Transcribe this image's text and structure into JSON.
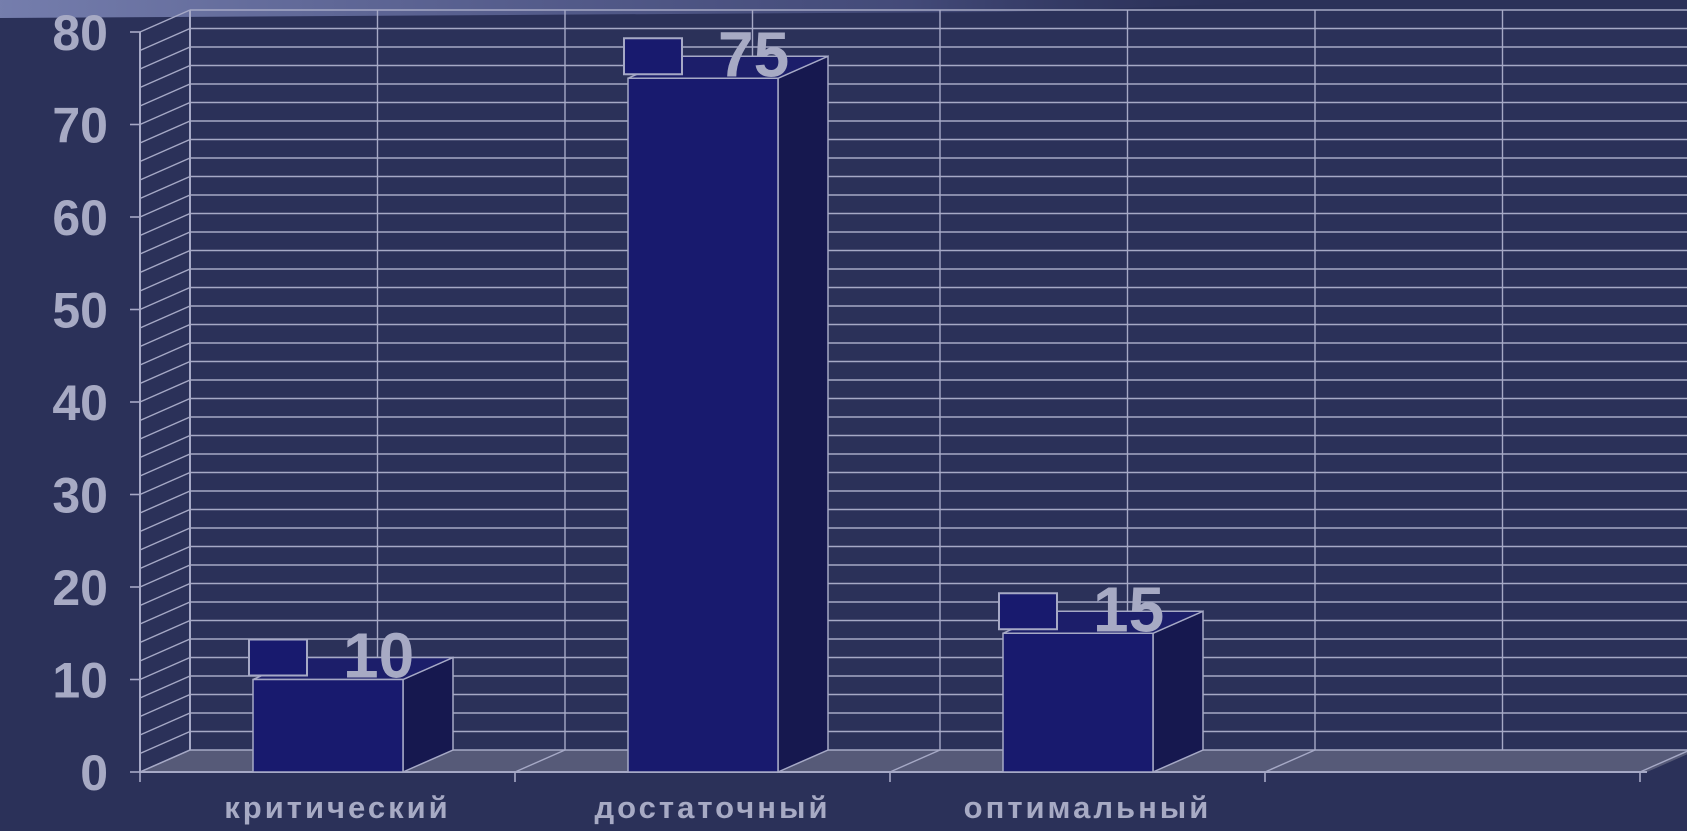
{
  "chart_data": {
    "type": "bar",
    "categories": [
      "критический",
      "достаточный",
      "оптимальный"
    ],
    "values": [
      10,
      75,
      15
    ],
    "data_labels": [
      "10",
      "75",
      "15"
    ],
    "title": "",
    "xlabel": "",
    "ylabel": "",
    "ylim": [
      0,
      80
    ],
    "y_ticks": [
      "0",
      "10",
      "20",
      "30",
      "40",
      "50",
      "60",
      "70",
      "80"
    ],
    "grid": true,
    "three_d": true,
    "legend": "none"
  },
  "colors": {
    "background": "#2b3159",
    "bar_front": "#181a6e",
    "bar_side": "#16184f",
    "bar_top": "#1c1e6a",
    "floor": "#565a78",
    "grid": "#a6a9c6",
    "text": "#a7aac4",
    "header_gradient_start": "#7d86b6"
  }
}
